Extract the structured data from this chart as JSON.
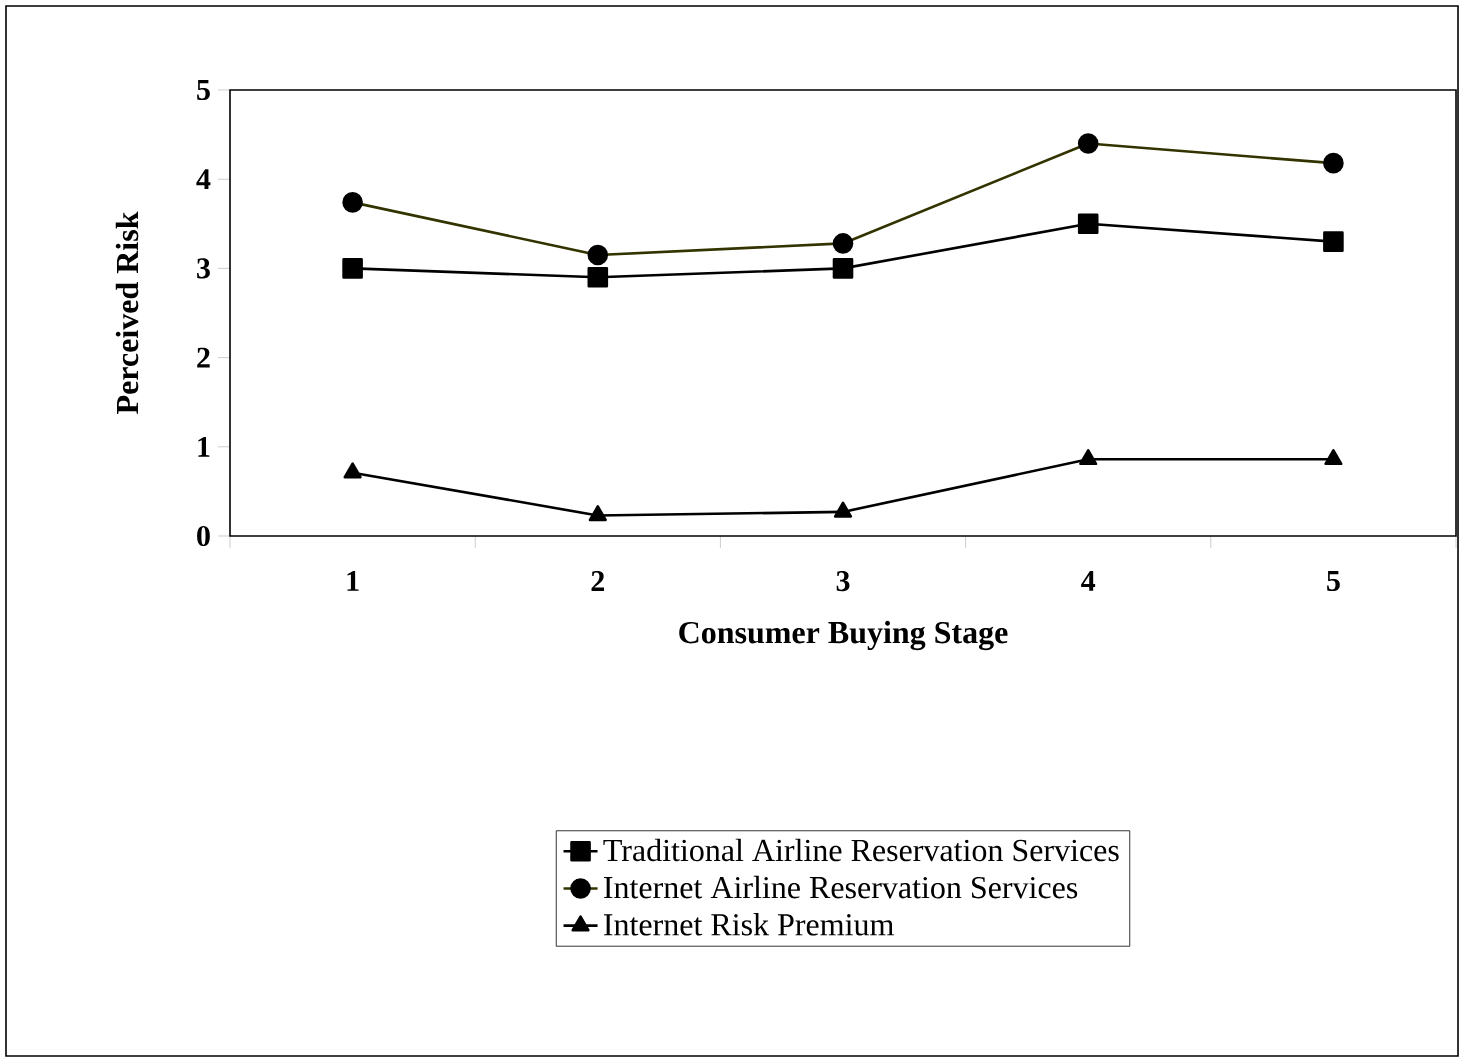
{
  "chart_data": {
    "type": "line",
    "xlabel": "Consumer Buying Stage",
    "ylabel": "Perceived Risk",
    "categories": [
      "1",
      "2",
      "3",
      "4",
      "5"
    ],
    "series": [
      {
        "name": "Traditional Airline Reservation Services",
        "color": "#000000",
        "marker": "square",
        "values": [
          3.0,
          2.9,
          3.0,
          3.5,
          3.3
        ]
      },
      {
        "name": "Internet Airline Reservation Services",
        "color": "#333300",
        "marker": "circle",
        "values": [
          3.74,
          3.15,
          3.28,
          4.4,
          4.18
        ]
      },
      {
        "name": "Internet Risk Premium",
        "color": "#000000",
        "marker": "triangle",
        "values": [
          0.71,
          0.23,
          0.27,
          0.86,
          0.86
        ]
      }
    ],
    "ylim": [
      0,
      5
    ],
    "yticks": [
      0,
      1,
      2,
      3,
      4,
      5
    ],
    "grid": false,
    "legend": "bottom",
    "line_style": "solid"
  }
}
